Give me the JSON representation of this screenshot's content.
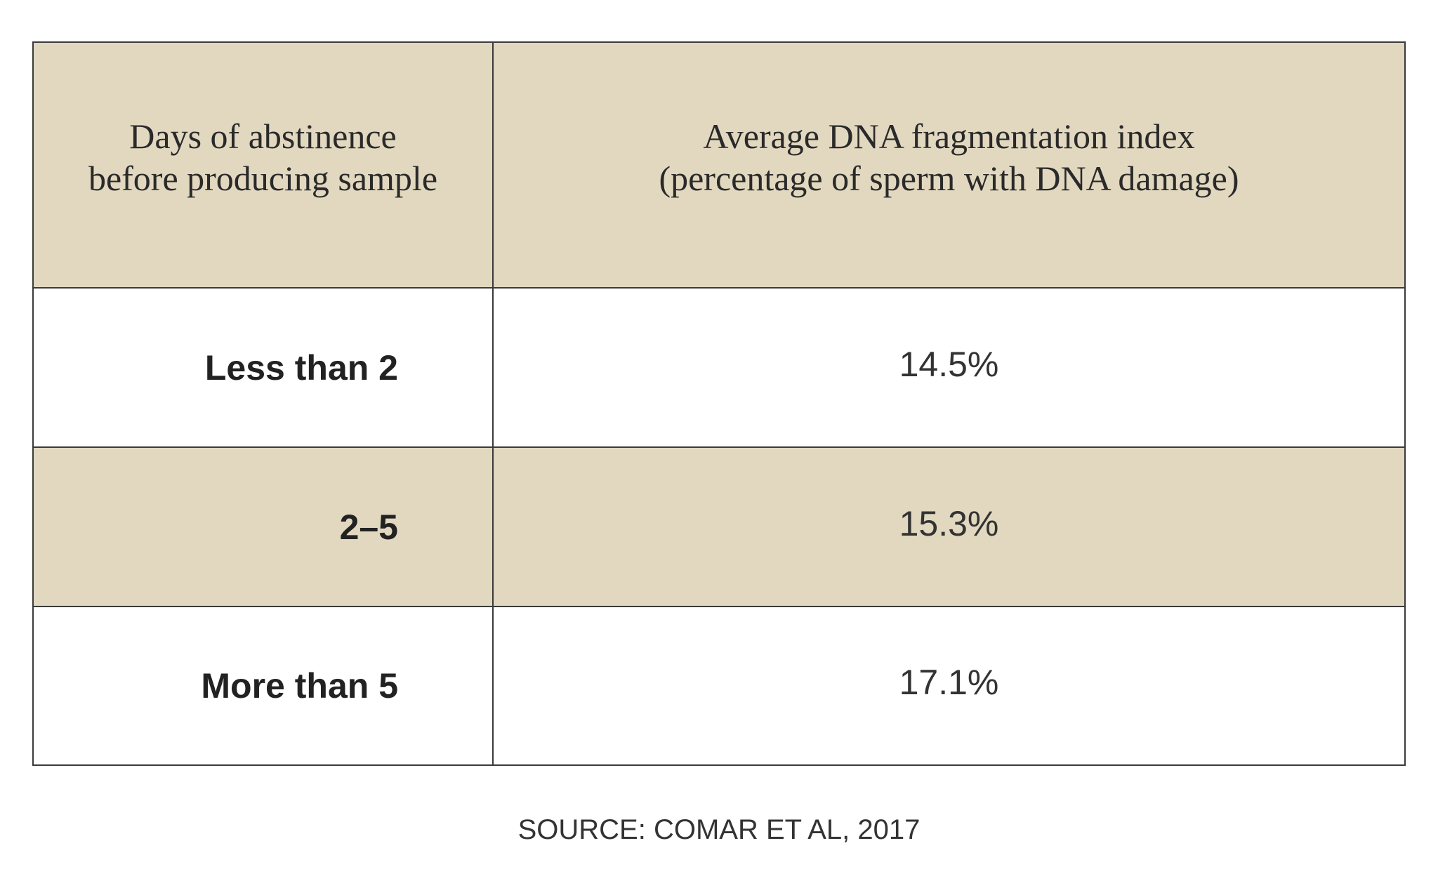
{
  "table": {
    "header": [
      [
        "Days of abstinence",
        "before producing sample"
      ],
      [
        "Average DNA fragmentation index",
        "(percentage of sperm with DNA damage)"
      ]
    ],
    "rows": [
      [
        "Less than 2",
        "14.5%"
      ],
      [
        "2–5",
        "15.3%"
      ],
      [
        "More than 5",
        "17.1%"
      ]
    ]
  },
  "source": "SOURCE: COMAR ET AL, 2017"
}
